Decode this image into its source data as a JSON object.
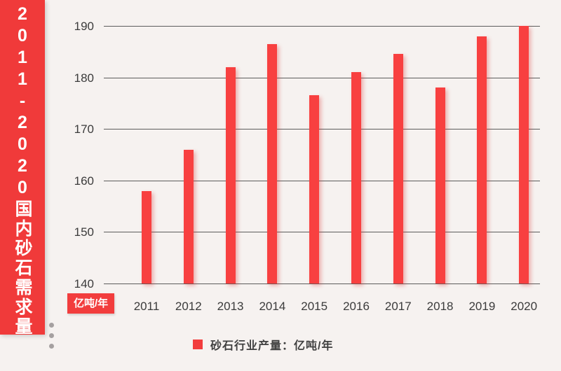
{
  "banner": {
    "title": "2011-2020国内砂石需求量",
    "color": "#f03a3a"
  },
  "unit_badge": {
    "label": "亿吨/年"
  },
  "legend": {
    "label": "砂石行业产量：亿吨/年",
    "swatch_color": "#f23d3d"
  },
  "chart_data": {
    "type": "bar",
    "title": "2011-2020国内砂石需求量",
    "categories": [
      "2011",
      "2012",
      "2013",
      "2014",
      "2015",
      "2016",
      "2017",
      "2018",
      "2019",
      "2020"
    ],
    "values": [
      158,
      166,
      182,
      186.5,
      176.5,
      181,
      184.5,
      178,
      188,
      190
    ],
    "xlabel": "",
    "ylabel": "亿吨/年",
    "ylim": [
      140,
      190
    ],
    "yticks": [
      140,
      150,
      160,
      170,
      180,
      190
    ],
    "grid": true,
    "legend_position": "bottom",
    "legend_entries": [
      "砂石行业产量：亿吨/年"
    ],
    "bar_color": "#f84040"
  }
}
